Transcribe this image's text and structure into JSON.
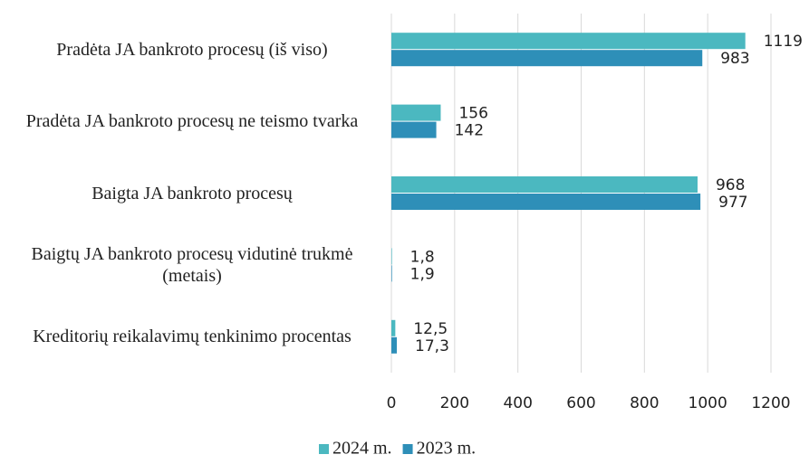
{
  "chart_data": {
    "type": "bar",
    "orientation": "horizontal",
    "categories": [
      "Pradėta JA bankroto procesų (iš viso)",
      "Pradėta JA bankroto procesų ne teismo tvarka",
      "Baigta JA bankroto procesų",
      "Baigtų JA bankroto procesų vidutinė trukmė (metais)",
      "Kreditorių reikalavimų tenkinimo procentas"
    ],
    "series": [
      {
        "name": "2024 m.",
        "color": "#4bb8c0",
        "values": [
          1119,
          156,
          968,
          1.8,
          12.5
        ],
        "value_labels": [
          "1119",
          "156",
          "968",
          "1,8",
          "12,5"
        ]
      },
      {
        "name": "2023 m.",
        "color": "#2e8fb8",
        "values": [
          983,
          142,
          977,
          1.9,
          17.3
        ],
        "value_labels": [
          "983",
          "142",
          "977",
          "1,9",
          "17,3"
        ]
      }
    ],
    "xlim": [
      0,
      1200
    ],
    "xticks": [
      0,
      200,
      400,
      600,
      800,
      1000,
      1200
    ],
    "grid": true,
    "legend": "bottom"
  }
}
